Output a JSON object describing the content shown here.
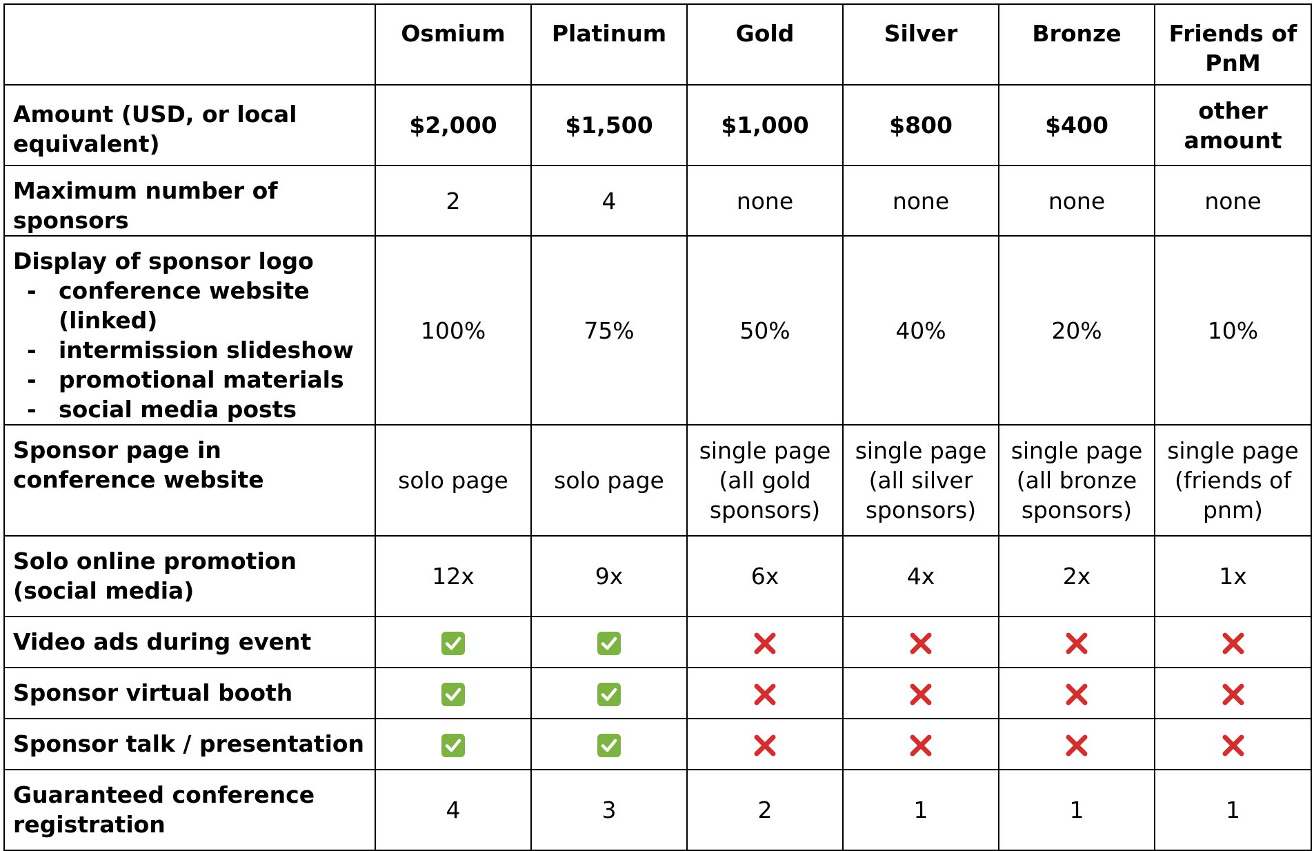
{
  "header": {
    "corner": "",
    "tiers": [
      "Osmium",
      "Platinum",
      "Gold",
      "Silver",
      "Bronze",
      "Friends of PnM"
    ]
  },
  "rows": {
    "amount": {
      "label": "Amount (USD, or local equivalent)",
      "values": [
        "$2,000",
        "$1,500",
        "$1,000",
        "$800",
        "$400",
        "other amount"
      ]
    },
    "max_sponsors": {
      "label": "Maximum number of sponsors",
      "values": [
        "2",
        "4",
        "none",
        "none",
        "none",
        "none"
      ]
    },
    "logo_display": {
      "label": "Display of sponsor logo",
      "items": [
        "conference website (linked)",
        "intermission slideshow",
        "promotional materials",
        "social media posts"
      ],
      "bullet": "-",
      "values": [
        "100%",
        "75%",
        "50%",
        "40%",
        "20%",
        "10%"
      ]
    },
    "sponsor_page": {
      "label": "Sponsor page in conference website",
      "values": [
        "solo page",
        "solo page",
        "single page (all gold sponsors)",
        "single page (all silver sponsors)",
        "single page (all bronze sponsors)",
        "single page (friends of pnm)"
      ]
    },
    "solo_promotion": {
      "label": "Solo online promotion (social media)",
      "values": [
        "12x",
        "9x",
        "6x",
        "4x",
        "2x",
        "1x"
      ]
    },
    "video_ads": {
      "label": "Video ads during event",
      "values": [
        true,
        true,
        false,
        false,
        false,
        false
      ]
    },
    "virtual_booth": {
      "label": "Sponsor virtual booth",
      "values": [
        true,
        true,
        false,
        false,
        false,
        false
      ]
    },
    "sponsor_talk": {
      "label": "Sponsor talk / presentation",
      "values": [
        true,
        true,
        false,
        false,
        false,
        false
      ]
    },
    "registration": {
      "label": "Guaranteed conference registration",
      "values": [
        "4",
        "3",
        "2",
        "1",
        "1",
        "1"
      ]
    }
  },
  "icons": {
    "yes": "check-mark-icon",
    "no": "cross-mark-icon"
  },
  "colors": {
    "check_bg": "#7cb342",
    "check_mark": "#ffffff",
    "cross": "#d32f2f",
    "border": "#000000"
  }
}
